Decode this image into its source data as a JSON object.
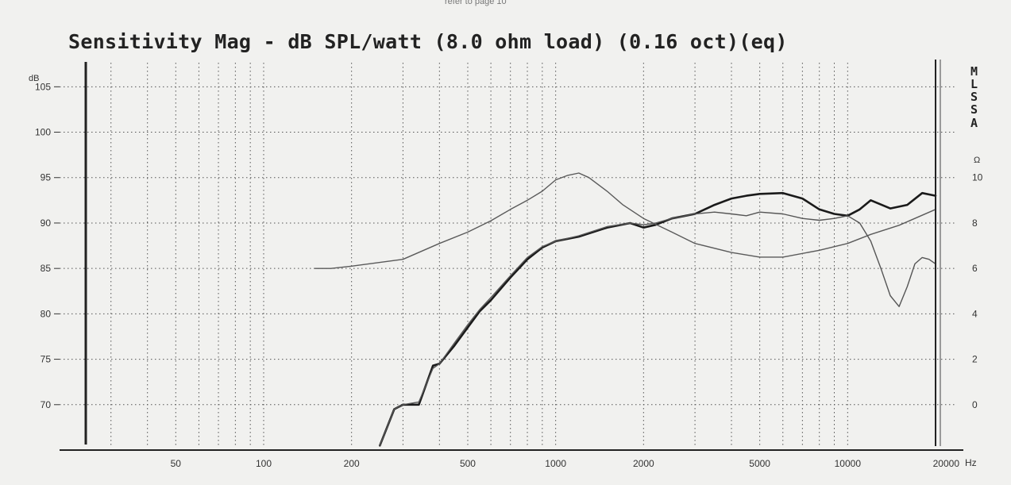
{
  "page_note": "refer to page 10",
  "chart_data": {
    "type": "line",
    "title": "Sensitivity Mag - dB SPL/watt (8.0 ohm load) (0.16 oct)(eq)",
    "xlabel": "",
    "ylabel": "",
    "x_unit": "Hz",
    "y_unit": "dB",
    "y2_unit": "Ω",
    "corner_label": [
      "M",
      "L",
      "S",
      "S",
      "A"
    ],
    "x_scale": "log",
    "xlim": [
      20,
      20000
    ],
    "ylim": [
      65,
      108
    ],
    "y2lim": [
      -2,
      15.2
    ],
    "grid": true,
    "legend": "none",
    "x_ticks": [
      {
        "value": 50,
        "label": "50"
      },
      {
        "value": 100,
        "label": "100"
      },
      {
        "value": 200,
        "label": "200"
      },
      {
        "value": 500,
        "label": "500"
      },
      {
        "value": 1000,
        "label": "1000"
      },
      {
        "value": 2000,
        "label": "2000"
      },
      {
        "value": 5000,
        "label": "5000"
      },
      {
        "value": 10000,
        "label": "10000"
      },
      {
        "value": 20000,
        "label": "20000"
      }
    ],
    "y_ticks": [
      {
        "value": 105,
        "label": "105"
      },
      {
        "value": 100,
        "label": "100"
      },
      {
        "value": 95,
        "label": "95"
      },
      {
        "value": 90,
        "label": "90"
      },
      {
        "value": 85,
        "label": "85"
      },
      {
        "value": 80,
        "label": "80"
      },
      {
        "value": 75,
        "label": "75"
      },
      {
        "value": 70,
        "label": "70"
      }
    ],
    "y2_ticks": [
      {
        "value": 10,
        "label": "10"
      },
      {
        "value": 8,
        "label": "8"
      },
      {
        "value": 6,
        "label": "6"
      },
      {
        "value": 4,
        "label": "4"
      },
      {
        "value": 2,
        "label": "2"
      },
      {
        "value": 0,
        "label": "0"
      }
    ],
    "series": [
      {
        "axis": "left",
        "color": "#1a1a1a",
        "width": 2.6,
        "x": [
          250,
          280,
          300,
          340,
          380,
          400,
          450,
          500,
          550,
          600,
          700,
          800,
          900,
          1000,
          1200,
          1500,
          1800,
          2000,
          2200,
          2500,
          3000,
          3500,
          4000,
          4500,
          5000,
          6000,
          7000,
          8000,
          9000,
          10000,
          11000,
          12000,
          14000,
          16000,
          18000,
          20000
        ],
        "y": [
          65.5,
          69.5,
          70,
          70,
          74.3,
          74.5,
          76.5,
          78.5,
          80.3,
          81.5,
          84,
          86,
          87.3,
          88,
          88.5,
          89.5,
          90,
          89.5,
          89.8,
          90.5,
          91,
          92,
          92.7,
          93,
          93.2,
          93.3,
          92.7,
          91.5,
          91,
          90.8,
          91.5,
          92.5,
          91.6,
          92,
          93.3,
          93
        ]
      },
      {
        "axis": "left",
        "color": "#555555",
        "width": 1.4,
        "x": [
          250,
          280,
          300,
          340,
          380,
          400,
          450,
          500,
          550,
          600,
          700,
          800,
          900,
          1000,
          1200,
          1500,
          1800,
          2000,
          2200,
          2500,
          3000,
          3500,
          4000,
          4500,
          5000,
          6000,
          7000,
          8000,
          9000,
          10000,
          11000,
          12000,
          13000,
          14000,
          15000,
          16000,
          17000,
          18000,
          19000,
          20000
        ],
        "y": [
          65.5,
          69.5,
          70,
          70.3,
          74,
          74.5,
          76.8,
          78.8,
          80.5,
          81.8,
          84.2,
          86.2,
          87.4,
          88,
          88.6,
          89.6,
          90,
          89.8,
          90,
          90.5,
          91,
          91.2,
          91,
          90.8,
          91.2,
          91,
          90.5,
          90.3,
          90.5,
          90.8,
          90,
          88,
          85,
          82,
          80.8,
          83,
          85.5,
          86.2,
          86,
          85.5
        ]
      },
      {
        "axis": "right",
        "color": "#5a5a5a",
        "width": 1.4,
        "x": [
          150,
          170,
          200,
          300,
          400,
          500,
          600,
          700,
          800,
          900,
          1000,
          1100,
          1200,
          1300,
          1500,
          1700,
          2000,
          2500,
          3000,
          4000,
          5000,
          6000,
          8000,
          10000,
          12000,
          15000,
          20000
        ],
        "y": [
          6.0,
          6.0,
          6.1,
          6.4,
          7.1,
          7.6,
          8.1,
          8.6,
          9.0,
          9.4,
          9.9,
          10.1,
          10.2,
          10.0,
          9.4,
          8.8,
          8.2,
          7.6,
          7.1,
          6.7,
          6.5,
          6.5,
          6.8,
          7.1,
          7.5,
          7.9,
          8.6
        ]
      }
    ]
  }
}
